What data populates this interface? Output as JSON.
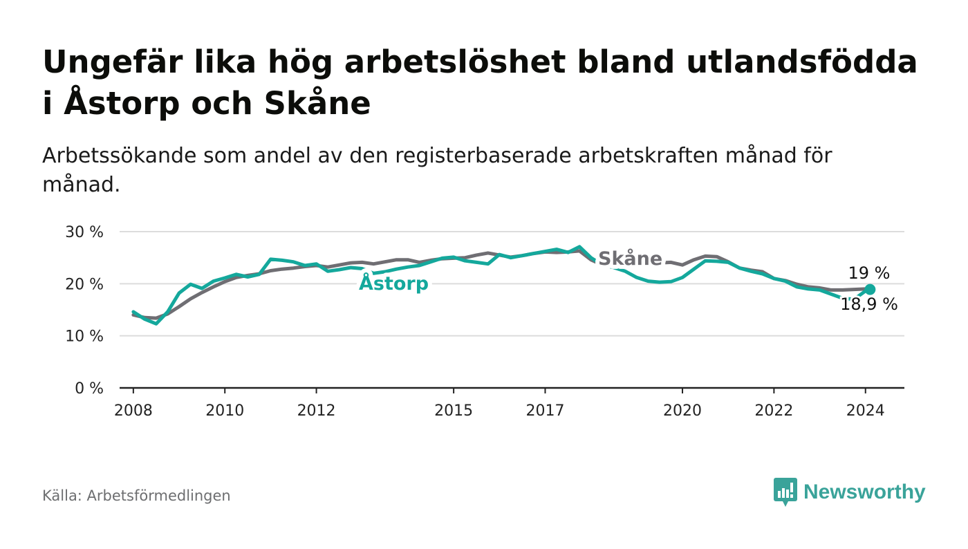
{
  "title": "Ungefär lika hög arbetslöshet bland utlandsfödda i Åstorp och Skåne",
  "subtitle": "Arbetssökande som andel av den registerbaserade arbetskraften månad för månad.",
  "source": "Källa: Arbetsförmedlingen",
  "brand": "Newsworthy",
  "colors": {
    "astorp": "#14a89c",
    "skane": "#6f6e73",
    "grid": "#dcdcdc",
    "axis": "#222222",
    "brand": "#3aa39a"
  },
  "chart_data": {
    "type": "line",
    "title": "Ungefär lika hög arbetslöshet bland utlandsfödda i Åstorp och Skåne",
    "xlabel": "",
    "ylabel": "",
    "ylim": [
      0,
      30
    ],
    "xlim": [
      2007.7,
      2024.85
    ],
    "y_ticks": [
      0,
      10,
      20,
      30
    ],
    "y_tick_labels": [
      "0 %",
      "10 %",
      "20 %",
      "30 %"
    ],
    "x_ticks": [
      2008,
      2010,
      2012,
      2015,
      2017,
      2020,
      2022,
      2024
    ],
    "x_tick_labels": [
      "2008",
      "2010",
      "2012",
      "2015",
      "2017",
      "2020",
      "2022",
      "2024"
    ],
    "series": [
      {
        "name": "Skåne",
        "end_label": "19 %",
        "x": [
          2008.0,
          2008.25,
          2008.5,
          2008.75,
          2009.0,
          2009.25,
          2009.5,
          2009.75,
          2010.0,
          2010.25,
          2010.5,
          2010.75,
          2011.0,
          2011.25,
          2011.5,
          2011.75,
          2012.0,
          2012.25,
          2012.5,
          2012.75,
          2013.0,
          2013.25,
          2013.5,
          2013.75,
          2014.0,
          2014.25,
          2014.5,
          2014.75,
          2015.0,
          2015.25,
          2015.5,
          2015.75,
          2016.0,
          2016.25,
          2016.5,
          2016.75,
          2017.0,
          2017.25,
          2017.5,
          2017.75,
          2018.0,
          2018.25,
          2018.5,
          2018.75,
          2019.0,
          2019.25,
          2019.5,
          2019.75,
          2020.0,
          2020.25,
          2020.5,
          2020.75,
          2021.0,
          2021.25,
          2021.5,
          2021.75,
          2022.0,
          2022.25,
          2022.5,
          2022.75,
          2023.0,
          2023.25,
          2023.5,
          2023.75,
          2024.0
        ],
        "values": [
          14.0,
          13.5,
          13.4,
          14.2,
          15.6,
          17.1,
          18.3,
          19.4,
          20.4,
          21.2,
          21.6,
          21.9,
          22.5,
          22.8,
          23.0,
          23.3,
          23.5,
          23.2,
          23.6,
          24.0,
          24.1,
          23.8,
          24.2,
          24.6,
          24.6,
          24.1,
          24.5,
          24.8,
          24.9,
          25.0,
          25.5,
          25.9,
          25.5,
          25.1,
          25.4,
          25.8,
          26.1,
          26.0,
          26.1,
          26.3,
          24.6,
          23.6,
          23.4,
          23.2,
          23.6,
          23.9,
          24.0,
          24.1,
          23.6,
          24.6,
          25.3,
          25.2,
          24.2,
          23.0,
          22.6,
          22.3,
          21.0,
          20.6,
          19.9,
          19.4,
          19.2,
          18.8,
          18.8,
          18.9,
          19.0
        ]
      },
      {
        "name": "Åstorp",
        "end_label": "18,9 %",
        "x": [
          2008.0,
          2008.25,
          2008.5,
          2008.75,
          2009.0,
          2009.25,
          2009.5,
          2009.75,
          2010.0,
          2010.25,
          2010.5,
          2010.75,
          2011.0,
          2011.25,
          2011.5,
          2011.75,
          2012.0,
          2012.25,
          2012.5,
          2012.75,
          2013.0,
          2013.25,
          2013.5,
          2013.75,
          2014.0,
          2014.25,
          2014.5,
          2014.75,
          2015.0,
          2015.25,
          2015.5,
          2015.75,
          2016.0,
          2016.25,
          2016.5,
          2016.75,
          2017.0,
          2017.25,
          2017.5,
          2017.75,
          2018.0,
          2018.25,
          2018.5,
          2018.75,
          2019.0,
          2019.25,
          2019.5,
          2019.75,
          2020.0,
          2020.25,
          2020.5,
          2020.75,
          2021.0,
          2021.25,
          2021.5,
          2021.75,
          2022.0,
          2022.25,
          2022.5,
          2022.75,
          2023.0,
          2023.25,
          2023.5,
          2023.75,
          2024.0,
          2024.1
        ],
        "values": [
          14.6,
          13.2,
          12.3,
          14.6,
          18.2,
          19.9,
          19.1,
          20.5,
          21.1,
          21.8,
          21.3,
          21.8,
          24.7,
          24.5,
          24.2,
          23.5,
          23.8,
          22.4,
          22.7,
          23.1,
          22.9,
          22.0,
          22.3,
          22.8,
          23.2,
          23.5,
          24.2,
          24.9,
          25.1,
          24.4,
          24.1,
          23.8,
          25.6,
          25.0,
          25.4,
          25.8,
          26.2,
          26.6,
          26.0,
          27.1,
          25.0,
          23.6,
          23.1,
          22.4,
          21.2,
          20.5,
          20.3,
          20.4,
          21.2,
          22.8,
          24.4,
          24.3,
          24.1,
          23.0,
          22.4,
          21.9,
          21.0,
          20.5,
          19.4,
          19.0,
          18.8,
          18.0,
          17.2,
          17.0,
          18.6,
          18.9
        ]
      }
    ]
  }
}
